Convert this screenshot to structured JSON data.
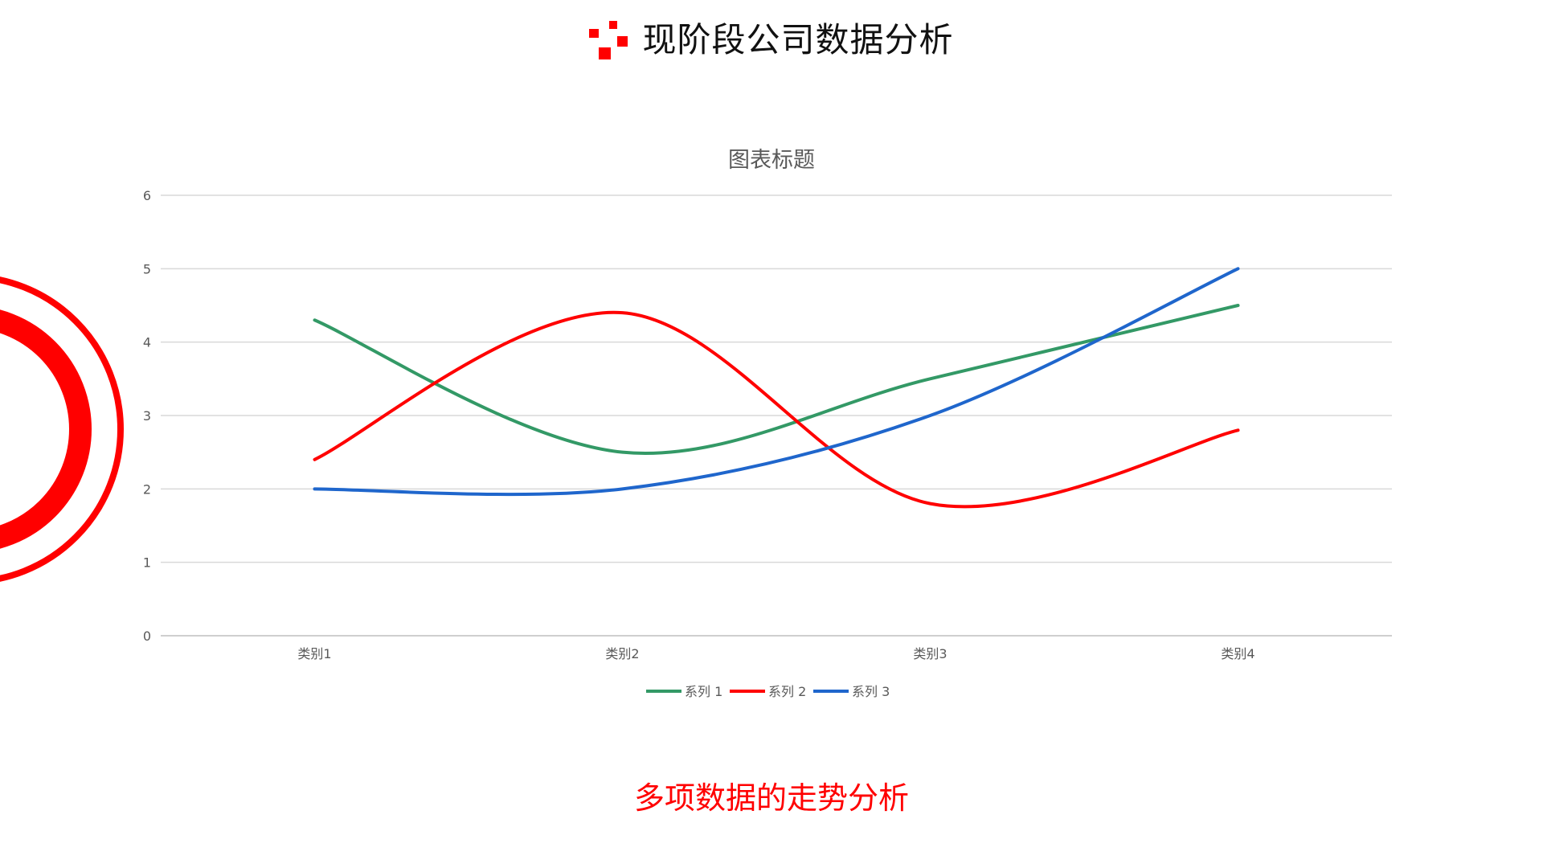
{
  "slide": {
    "title": "现阶段公司数据分析",
    "subtitle": "多项数据的走势分析",
    "accent_color": "#ff0000",
    "logo_icon": "pixel-squares-icon",
    "decoration_icon": "concentric-rings-icon"
  },
  "chart_data": {
    "type": "line",
    "smooth": true,
    "title": "图表标题",
    "xlabel": "",
    "ylabel": "",
    "categories": [
      "类别1",
      "类别2",
      "类别3",
      "类别4"
    ],
    "ylim": [
      0,
      6
    ],
    "yticks": [
      0,
      1,
      2,
      3,
      4,
      5,
      6
    ],
    "grid": true,
    "legend": "bottom-center",
    "series": [
      {
        "name": "系列 1",
        "values": [
          4.3,
          2.5,
          3.5,
          4.5
        ],
        "color": "#339966"
      },
      {
        "name": "系列 2",
        "values": [
          2.4,
          4.4,
          1.8,
          2.8
        ],
        "color": "#ff0000"
      },
      {
        "name": "系列 3",
        "values": [
          2.0,
          2.0,
          3.0,
          5.0
        ],
        "color": "#1f66cc"
      }
    ]
  }
}
